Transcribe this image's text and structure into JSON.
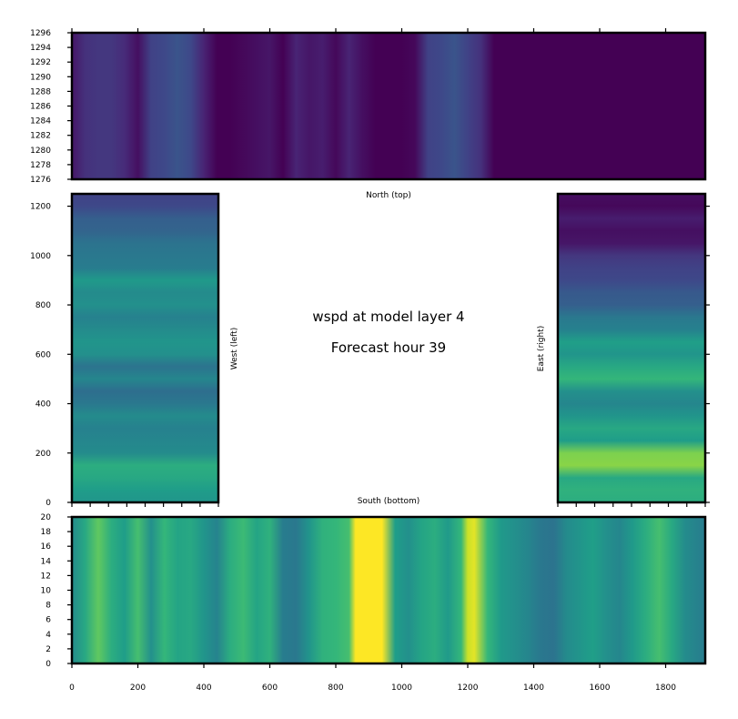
{
  "figure": {
    "title_line1": "wspd at model layer 4",
    "title_line2": "Forecast hour 39"
  },
  "colors": {
    "viridis": [
      "#440154",
      "#482878",
      "#3e4989",
      "#31688e",
      "#26828e",
      "#1f9e89",
      "#35b779",
      "#6ece58",
      "#b5de2b",
      "#fde725"
    ]
  },
  "chart_data": [
    {
      "type": "heatmap",
      "panel": "north",
      "label": "North (top)",
      "xlim": [
        0,
        1920
      ],
      "ylim": [
        1276,
        1296
      ],
      "yticks": [
        1276,
        1278,
        1280,
        1282,
        1284,
        1286,
        1288,
        1290,
        1292,
        1294,
        1296
      ],
      "x_profile": {
        "x": [
          0,
          40,
          80,
          120,
          160,
          200,
          240,
          280,
          320,
          360,
          400,
          440,
          480,
          520,
          560,
          600,
          640,
          680,
          720,
          760,
          800,
          840,
          880,
          920,
          960,
          1000,
          1040,
          1080,
          1120,
          1160,
          1200,
          1240,
          1280,
          1400,
          1600,
          1920
        ],
        "v": [
          0.06,
          0.14,
          0.16,
          0.16,
          0.12,
          0.04,
          0.2,
          0.22,
          0.26,
          0.22,
          0.1,
          0.0,
          0.0,
          0.02,
          0.04,
          0.06,
          0.0,
          0.1,
          0.06,
          0.08,
          0.02,
          0.1,
          0.04,
          0.0,
          0.0,
          0.0,
          0.02,
          0.2,
          0.22,
          0.26,
          0.2,
          0.14,
          0.0,
          0.0,
          0.0,
          0.0
        ]
      }
    },
    {
      "type": "heatmap",
      "panel": "west",
      "label": "West (left)",
      "ylim": [
        0,
        1250
      ],
      "yticks": [
        0,
        200,
        400,
        600,
        800,
        1000,
        1200
      ],
      "y_profile": {
        "y": [
          0,
          50,
          100,
          150,
          200,
          250,
          300,
          350,
          400,
          450,
          500,
          550,
          600,
          650,
          700,
          750,
          800,
          850,
          900,
          950,
          1000,
          1050,
          1100,
          1150,
          1200,
          1250
        ],
        "v": [
          0.52,
          0.55,
          0.6,
          0.62,
          0.48,
          0.46,
          0.44,
          0.48,
          0.4,
          0.36,
          0.46,
          0.38,
          0.5,
          0.52,
          0.48,
          0.44,
          0.5,
          0.48,
          0.54,
          0.42,
          0.4,
          0.38,
          0.32,
          0.3,
          0.22,
          0.2
        ]
      }
    },
    {
      "type": "heatmap",
      "panel": "east",
      "label": "East (right)",
      "ylim": [
        0,
        1250
      ],
      "y_profile": {
        "y": [
          0,
          50,
          100,
          150,
          200,
          250,
          300,
          350,
          400,
          450,
          500,
          550,
          600,
          650,
          700,
          750,
          800,
          850,
          900,
          950,
          1000,
          1050,
          1100,
          1150,
          1200,
          1250
        ],
        "v": [
          0.62,
          0.64,
          0.6,
          0.82,
          0.8,
          0.55,
          0.6,
          0.52,
          0.46,
          0.5,
          0.66,
          0.6,
          0.52,
          0.56,
          0.44,
          0.4,
          0.3,
          0.28,
          0.22,
          0.2,
          0.16,
          0.06,
          0.04,
          0.08,
          0.02,
          0.04
        ]
      }
    },
    {
      "type": "heatmap",
      "panel": "south",
      "label": "South (bottom)",
      "xlim": [
        0,
        1920
      ],
      "ylim": [
        0,
        20
      ],
      "xticks": [
        0,
        200,
        400,
        600,
        800,
        1000,
        1200,
        1400,
        1600,
        1800
      ],
      "yticks": [
        0,
        2,
        4,
        6,
        8,
        10,
        12,
        14,
        16,
        18,
        20
      ],
      "x_profile": {
        "x": [
          0,
          40,
          80,
          120,
          160,
          200,
          240,
          280,
          320,
          360,
          400,
          440,
          480,
          520,
          560,
          600,
          640,
          680,
          720,
          760,
          800,
          840,
          860,
          900,
          940,
          980,
          1020,
          1060,
          1100,
          1140,
          1180,
          1200,
          1220,
          1260,
          1300,
          1340,
          1380,
          1420,
          1460,
          1500,
          1540,
          1580,
          1620,
          1660,
          1700,
          1740,
          1780,
          1820,
          1860,
          1920
        ],
        "v": [
          0.48,
          0.6,
          0.75,
          0.62,
          0.55,
          0.7,
          0.5,
          0.66,
          0.58,
          0.6,
          0.52,
          0.45,
          0.62,
          0.68,
          0.58,
          0.64,
          0.42,
          0.4,
          0.52,
          0.64,
          0.66,
          0.7,
          1.0,
          1.0,
          1.0,
          0.55,
          0.5,
          0.58,
          0.62,
          0.54,
          0.66,
          0.92,
          0.96,
          0.66,
          0.54,
          0.5,
          0.46,
          0.4,
          0.38,
          0.48,
          0.52,
          0.56,
          0.5,
          0.46,
          0.54,
          0.62,
          0.7,
          0.6,
          0.48,
          0.42
        ]
      }
    }
  ]
}
